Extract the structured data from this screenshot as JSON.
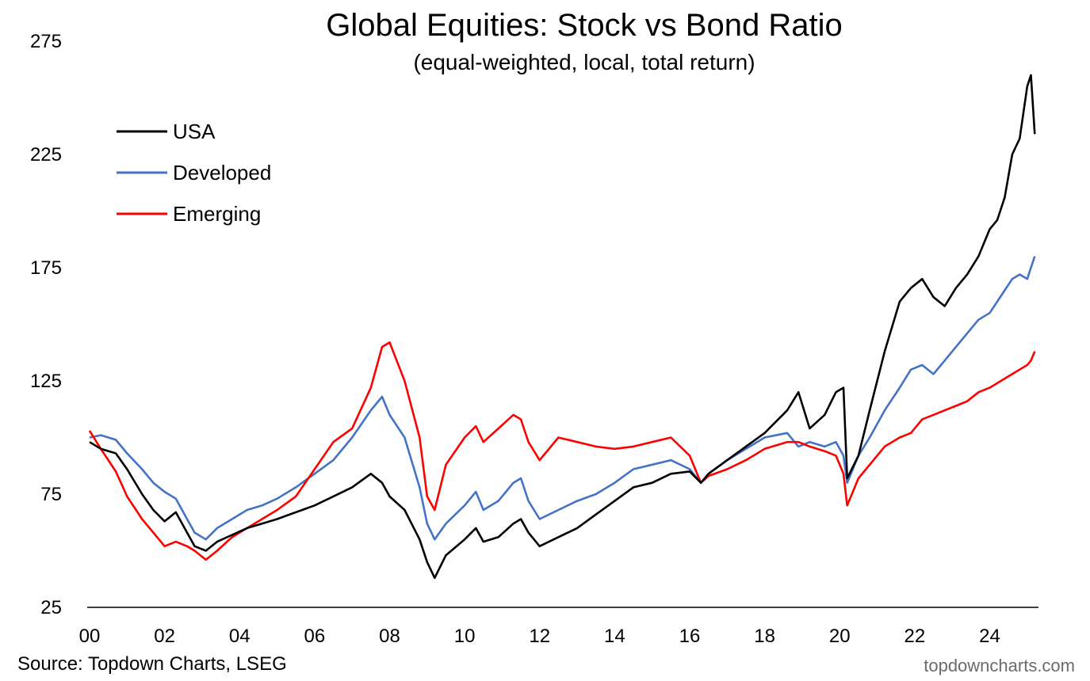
{
  "chart_data": {
    "type": "line",
    "title": "Global Equities:  Stock vs Bond Ratio",
    "subtitle": "(equal-weighted, local, total return)",
    "xlabel": "",
    "ylabel": "",
    "x_ticks": [
      "00",
      "02",
      "04",
      "06",
      "08",
      "10",
      "12",
      "14",
      "16",
      "18",
      "20",
      "22",
      "24"
    ],
    "x_tick_years": [
      2000,
      2002,
      2004,
      2006,
      2008,
      2010,
      2012,
      2014,
      2016,
      2018,
      2020,
      2022,
      2024
    ],
    "xlim": [
      2000,
      2025.3
    ],
    "y_ticks": [
      25,
      75,
      125,
      175,
      225,
      275
    ],
    "ylim": [
      25,
      275
    ],
    "grid": false,
    "legend": {
      "placement": "top-left",
      "entries": [
        "USA",
        "Developed",
        "Emerging"
      ]
    },
    "series": [
      {
        "name": "USA",
        "color": "#000000",
        "x": [
          2000.0,
          2000.3,
          2000.7,
          2001.0,
          2001.4,
          2001.7,
          2002.0,
          2002.3,
          2002.6,
          2002.8,
          2003.1,
          2003.4,
          2003.8,
          2004.2,
          2004.6,
          2005.0,
          2005.5,
          2006.0,
          2006.5,
          2007.0,
          2007.5,
          2007.8,
          2008.0,
          2008.4,
          2008.8,
          2009.0,
          2009.2,
          2009.5,
          2010.0,
          2010.3,
          2010.5,
          2010.9,
          2011.3,
          2011.5,
          2011.7,
          2012.0,
          2012.5,
          2013.0,
          2013.5,
          2014.0,
          2014.5,
          2015.0,
          2015.5,
          2016.0,
          2016.3,
          2016.5,
          2017.0,
          2017.5,
          2018.0,
          2018.6,
          2018.9,
          2019.2,
          2019.6,
          2019.9,
          2020.1,
          2020.2,
          2020.5,
          2020.8,
          2021.2,
          2021.6,
          2021.9,
          2022.2,
          2022.5,
          2022.8,
          2023.1,
          2023.4,
          2023.7,
          2024.0,
          2024.2,
          2024.4,
          2024.6,
          2024.8,
          2025.0,
          2025.1,
          2025.2
        ],
        "values": [
          98,
          95,
          93,
          86,
          75,
          68,
          63,
          67,
          58,
          52,
          50,
          54,
          57,
          60,
          62,
          64,
          67,
          70,
          74,
          78,
          84,
          80,
          74,
          68,
          55,
          45,
          38,
          48,
          55,
          60,
          54,
          56,
          62,
          64,
          58,
          52,
          56,
          60,
          66,
          72,
          78,
          80,
          84,
          85,
          80,
          84,
          90,
          96,
          102,
          112,
          120,
          104,
          110,
          120,
          122,
          82,
          92,
          112,
          138,
          160,
          166,
          170,
          162,
          158,
          166,
          172,
          180,
          192,
          196,
          206,
          225,
          232,
          255,
          260,
          234
        ]
      },
      {
        "name": "Developed",
        "color": "#4472C4",
        "x": [
          2000.0,
          2000.3,
          2000.7,
          2001.0,
          2001.4,
          2001.7,
          2002.0,
          2002.3,
          2002.6,
          2002.8,
          2003.1,
          2003.4,
          2003.8,
          2004.2,
          2004.6,
          2005.0,
          2005.5,
          2006.0,
          2006.5,
          2007.0,
          2007.5,
          2007.8,
          2008.0,
          2008.4,
          2008.8,
          2009.0,
          2009.2,
          2009.5,
          2010.0,
          2010.3,
          2010.5,
          2010.9,
          2011.3,
          2011.5,
          2011.7,
          2012.0,
          2012.5,
          2013.0,
          2013.5,
          2014.0,
          2014.5,
          2015.0,
          2015.5,
          2016.0,
          2016.3,
          2016.5,
          2017.0,
          2017.5,
          2018.0,
          2018.6,
          2018.9,
          2019.2,
          2019.6,
          2019.9,
          2020.1,
          2020.2,
          2020.5,
          2020.8,
          2021.2,
          2021.6,
          2021.9,
          2022.2,
          2022.5,
          2022.8,
          2023.1,
          2023.4,
          2023.7,
          2024.0,
          2024.2,
          2024.4,
          2024.6,
          2024.8,
          2025.0,
          2025.1,
          2025.2
        ],
        "values": [
          100,
          101,
          99,
          93,
          86,
          80,
          76,
          73,
          64,
          58,
          55,
          60,
          64,
          68,
          70,
          73,
          78,
          84,
          90,
          100,
          112,
          118,
          110,
          100,
          78,
          62,
          55,
          62,
          70,
          76,
          68,
          72,
          80,
          82,
          72,
          64,
          68,
          72,
          75,
          80,
          86,
          88,
          90,
          86,
          80,
          84,
          90,
          95,
          100,
          102,
          96,
          98,
          96,
          98,
          92,
          80,
          92,
          100,
          112,
          122,
          130,
          132,
          128,
          134,
          140,
          146,
          152,
          155,
          160,
          165,
          170,
          172,
          170,
          175,
          180
        ]
      },
      {
        "name": "Emerging",
        "color": "#FF0000",
        "x": [
          2000.0,
          2000.3,
          2000.7,
          2001.0,
          2001.4,
          2001.7,
          2002.0,
          2002.3,
          2002.6,
          2002.8,
          2003.1,
          2003.4,
          2003.8,
          2004.2,
          2004.6,
          2005.0,
          2005.5,
          2006.0,
          2006.5,
          2007.0,
          2007.5,
          2007.8,
          2008.0,
          2008.4,
          2008.8,
          2009.0,
          2009.2,
          2009.5,
          2010.0,
          2010.3,
          2010.5,
          2010.9,
          2011.3,
          2011.5,
          2011.7,
          2012.0,
          2012.5,
          2013.0,
          2013.5,
          2014.0,
          2014.5,
          2015.0,
          2015.5,
          2016.0,
          2016.3,
          2016.5,
          2017.0,
          2017.5,
          2018.0,
          2018.6,
          2018.9,
          2019.2,
          2019.6,
          2019.9,
          2020.1,
          2020.2,
          2020.5,
          2020.8,
          2021.2,
          2021.6,
          2021.9,
          2022.2,
          2022.5,
          2022.8,
          2023.1,
          2023.4,
          2023.7,
          2024.0,
          2024.2,
          2024.4,
          2024.6,
          2024.8,
          2025.0,
          2025.1,
          2025.2
        ],
        "values": [
          103,
          95,
          85,
          74,
          64,
          58,
          52,
          54,
          52,
          50,
          46,
          50,
          56,
          60,
          64,
          68,
          74,
          86,
          98,
          104,
          122,
          140,
          142,
          125,
          100,
          74,
          68,
          88,
          100,
          105,
          98,
          104,
          110,
          108,
          98,
          90,
          100,
          98,
          96,
          95,
          96,
          98,
          100,
          92,
          80,
          83,
          86,
          90,
          95,
          98,
          98,
          96,
          94,
          92,
          84,
          70,
          82,
          88,
          96,
          100,
          102,
          108,
          110,
          112,
          114,
          116,
          120,
          122,
          124,
          126,
          128,
          130,
          132,
          134,
          138
        ]
      }
    ],
    "source": "Source: Topdown Charts, LSEG",
    "watermark": "topdowncharts.com"
  }
}
